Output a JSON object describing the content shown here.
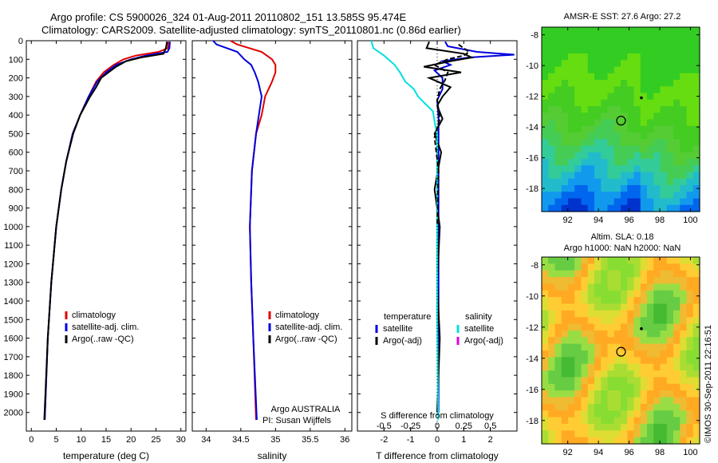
{
  "header": {
    "line1": "Argo profile: CS 5900026_324 01-Aug-2011 20110802_151 13.585S 95.474E",
    "line2": "Climatology: CARS2009. Satellite-adjusted climatology: synTS_20110801.nc (0.86d earlier)"
  },
  "chart_data": [
    {
      "id": "temperature",
      "type": "line",
      "xlabel": "temperature (deg C)",
      "ylabel": "",
      "xlim": [
        -1,
        31
      ],
      "ylim": [
        2100,
        0
      ],
      "xticks": [
        "0",
        "5",
        "10",
        "15",
        "20",
        "25",
        "30"
      ],
      "xtick_values": [
        0,
        5,
        10,
        15,
        20,
        25,
        30
      ],
      "yticks": [
        "0",
        "100",
        "200",
        "300",
        "400",
        "500",
        "600",
        "700",
        "800",
        "900",
        "1000",
        "1100",
        "1200",
        "1300",
        "1400",
        "1500",
        "1600",
        "1700",
        "1800",
        "1900",
        "2000"
      ],
      "ytick_values": [
        0,
        100,
        200,
        300,
        400,
        500,
        600,
        700,
        800,
        900,
        1000,
        1100,
        1200,
        1300,
        1400,
        1500,
        1600,
        1700,
        1800,
        1900,
        2000
      ],
      "legend": [
        "climatology",
        "satellite-adj. clim.",
        "Argo(..raw -QC)"
      ],
      "legend_colors": [
        "#e00000",
        "#0000dd",
        "#000000"
      ],
      "series": [
        {
          "name": "climatology",
          "color": "#e00000",
          "depth": [
            5,
            40,
            60,
            80,
            100,
            130,
            170,
            220,
            300,
            400,
            500,
            650,
            800,
            1000,
            1300,
            1600,
            2040
          ],
          "values": [
            27.5,
            27.4,
            25.5,
            21.0,
            18.5,
            16.5,
            14.5,
            13.0,
            11.5,
            9.8,
            8.3,
            7.0,
            6.0,
            5.0,
            4.0,
            3.3,
            2.7
          ]
        },
        {
          "name": "satellite-adj. clim.",
          "color": "#0000dd",
          "depth": [
            5,
            40,
            60,
            80,
            100,
            130,
            170,
            220,
            300,
            400,
            500,
            650,
            800,
            1000,
            1300,
            1600,
            2040
          ],
          "values": [
            27.8,
            27.7,
            27.3,
            23.0,
            20.0,
            17.0,
            15.0,
            13.2,
            11.5,
            9.8,
            8.3,
            7.0,
            6.0,
            5.0,
            4.0,
            3.3,
            2.7
          ]
        },
        {
          "name": "Argo(..raw -QC)",
          "color": "#000000",
          "depth": [
            5,
            40,
            70,
            90,
            110,
            140,
            170,
            200,
            250,
            300,
            400,
            500,
            650,
            800,
            1000,
            1300,
            1600,
            2040
          ],
          "values": [
            27.2,
            27.0,
            26.5,
            22.0,
            19.0,
            17.0,
            15.5,
            14.0,
            13.0,
            11.8,
            9.8,
            8.4,
            7.0,
            6.0,
            5.0,
            4.0,
            3.3,
            2.6
          ]
        }
      ]
    },
    {
      "id": "salinity",
      "type": "line",
      "xlabel": "salinity",
      "ylabel": "",
      "xlim": [
        33.8,
        36.1
      ],
      "ylim": [
        2100,
        0
      ],
      "xticks": [
        "34",
        "34.5",
        "35",
        "35.5",
        "36"
      ],
      "xtick_values": [
        34,
        34.5,
        35,
        35.5,
        36
      ],
      "legend": [
        "climatology",
        "satellite-adj. clim.",
        "Argo(..raw -QC)"
      ],
      "legend_colors": [
        "#e00000",
        "#0000dd",
        "#000000"
      ],
      "annotation_lines": [
        "Argo AUSTRALIA",
        "PI: Susan Wijffels"
      ],
      "series": [
        {
          "name": "climatology",
          "color": "#e00000",
          "depth": [
            0,
            20,
            60,
            100,
            130,
            170,
            220,
            300,
            400,
            500,
            700,
            1000,
            1300,
            1600,
            2040
          ],
          "values": [
            34.35,
            34.45,
            34.8,
            34.95,
            35.0,
            35.0,
            34.95,
            34.85,
            34.8,
            34.72,
            34.66,
            34.63,
            34.65,
            34.68,
            34.72
          ]
        },
        {
          "name": "satellite-adj. clim.",
          "color": "#0000dd",
          "depth": [
            0,
            20,
            60,
            100,
            130,
            170,
            220,
            300,
            400,
            500,
            700,
            1000,
            1300,
            1600,
            2040
          ],
          "values": [
            34.1,
            34.15,
            34.45,
            34.55,
            34.65,
            34.7,
            34.75,
            34.8,
            34.76,
            34.72,
            34.66,
            34.63,
            34.65,
            34.68,
            34.73
          ]
        },
        {
          "name": "Argo(..raw -QC)",
          "color": "#000000",
          "depth": [],
          "values": []
        }
      ]
    },
    {
      "id": "difference",
      "type": "line",
      "xlabel": "T difference from climatology",
      "xlabel_top": "S difference from climatology",
      "xlim": [
        -3,
        3
      ],
      "ylim": [
        2100,
        0
      ],
      "xticks": [
        "-2",
        "-1",
        "0",
        "1",
        "2"
      ],
      "xtick_values": [
        -2,
        -1,
        0,
        1,
        2
      ],
      "sticks": [
        "-0.5",
        "-0.25",
        "0",
        "0.25",
        "0.5"
      ],
      "stick_values": [
        -0.5,
        -0.25,
        0,
        0.25,
        0.5
      ],
      "legend_temperature_title": "temperature",
      "legend_salinity_title": "salinity",
      "legend_temperature": [
        "satellite",
        "Argo(-adj)"
      ],
      "legend_salinity": [
        "satellite",
        "Argo(-adj)"
      ],
      "legend_temperature_colors": [
        "#0000dd",
        "#000000"
      ],
      "legend_salinity_colors": [
        "#00e0e0",
        "#e000e0"
      ],
      "series": [
        {
          "name": "T satellite",
          "color": "#0000dd",
          "depth": [
            5,
            30,
            60,
            75,
            90,
            110,
            130,
            160,
            200,
            260,
            320,
            420,
            520,
            700,
            1000,
            1500,
            2000
          ],
          "values": [
            0.3,
            0.4,
            1.5,
            2.9,
            1.2,
            0.2,
            0.5,
            -0.1,
            0.2,
            0.2,
            0.0,
            0.05,
            0.05,
            0.05,
            0.05,
            0.05,
            0.05
          ]
        },
        {
          "name": "T Argo",
          "color": "#000000",
          "depth": [
            5,
            40,
            70,
            90,
            110,
            140,
            170,
            200,
            250,
            300,
            350,
            420,
            500,
            600,
            800,
            1000,
            1300,
            1600,
            2000
          ],
          "values": [
            -0.3,
            -0.4,
            1.0,
            1.3,
            0.5,
            -0.5,
            0.9,
            -0.3,
            0.5,
            0.2,
            0.0,
            0.2,
            -0.1,
            0.15,
            -0.1,
            0.1,
            0.0,
            0.1,
            0.0
          ]
        },
        {
          "name": "S satellite",
          "color": "#00e0e0",
          "depth": [
            0,
            40,
            80,
            130,
            170,
            220,
            260,
            300,
            380,
            450,
            500,
            700,
            1000,
            1500,
            2040
          ],
          "values": [
            -0.62,
            -0.6,
            -0.5,
            -0.4,
            -0.35,
            -0.3,
            -0.22,
            -0.18,
            -0.04,
            -0.02,
            0.0,
            0.0,
            0.0,
            0.0,
            0.01
          ]
        }
      ]
    }
  ],
  "maps": [
    {
      "id": "sst-map",
      "title_lines": [
        "AMSR-E SST: 27.6 Argo: 27.2"
      ],
      "xticks": [
        "92",
        "94",
        "96",
        "98",
        "100"
      ],
      "xtick_values": [
        92,
        94,
        96,
        98,
        100
      ],
      "yticks": [
        "-8",
        "-10",
        "-12",
        "-14",
        "-16",
        "-18"
      ],
      "ytick_values": [
        -8,
        -10,
        -12,
        -14,
        -16,
        -18
      ],
      "xlim": [
        90.3,
        100.6
      ],
      "ylim": [
        -19.5,
        -7.5
      ],
      "float_lon": 95.474,
      "float_lat": -13.585,
      "track_lon": 96.8,
      "track_lat": -12.1
    },
    {
      "id": "sla-map",
      "title_lines": [
        "Altim. SLA: 0.18",
        "Argo h1000: NaN h2000: NaN"
      ],
      "xticks": [
        "92",
        "94",
        "96",
        "98",
        "100"
      ],
      "xtick_values": [
        92,
        94,
        96,
        98,
        100
      ],
      "yticks": [
        "-8",
        "-10",
        "-12",
        "-14",
        "-16",
        "-18"
      ],
      "ytick_values": [
        -8,
        -10,
        -12,
        -14,
        -16,
        -18
      ],
      "xlim": [
        90.3,
        100.6
      ],
      "ylim": [
        -19.5,
        -7.5
      ],
      "float_lon": 95.474,
      "float_lat": -13.585,
      "track_lon": 96.8,
      "track_lat": -12.1
    }
  ],
  "watermark": "©IMOS 30-Sep-2011 22:16:51"
}
